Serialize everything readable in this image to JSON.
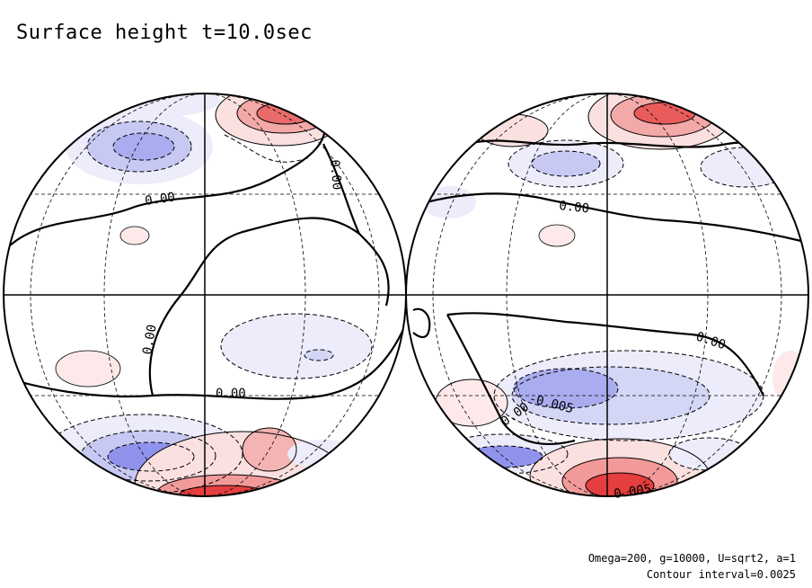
{
  "chart_data": {
    "type": "contour",
    "title": "Surface height t=10.0sec",
    "parameters": "Omega=200, g=10000, U=sqrt2, a=1",
    "contour_interval_label": "Contour interval=0.0025",
    "contour_interval": 0.0025,
    "projection": "orthographic, two hemispheres",
    "hemispheres": [
      {
        "name": "left",
        "contour_labels": [
          "0.00",
          "0.00",
          "0.00",
          "0.00"
        ],
        "features": [
          {
            "sign": "negative",
            "location": "upper-left",
            "levels": 3
          },
          {
            "sign": "positive",
            "location": "top-center",
            "levels": 6
          },
          {
            "sign": "positive",
            "location": "upper-left small",
            "levels": 1
          },
          {
            "sign": "negative",
            "location": "center-right",
            "levels": 2
          },
          {
            "sign": "positive",
            "location": "lower-left small",
            "levels": 1
          },
          {
            "sign": "negative",
            "location": "bottom-left",
            "levels": 5
          },
          {
            "sign": "positive",
            "location": "bottom-center",
            "levels": 7
          }
        ]
      },
      {
        "name": "right",
        "contour_labels": [
          "0.00",
          "0.00",
          "-0.005",
          "0.00",
          "0.005"
        ],
        "features": [
          {
            "sign": "positive",
            "location": "top-center",
            "levels": 6
          },
          {
            "sign": "negative",
            "location": "upper-center",
            "levels": 2
          },
          {
            "sign": "positive",
            "location": "upper small",
            "levels": 1
          },
          {
            "sign": "negative",
            "location": "center-lower",
            "levels": 3
          },
          {
            "sign": "positive",
            "location": "lower-left",
            "levels": 2
          },
          {
            "sign": "negative",
            "location": "bottom-left",
            "levels": 4
          },
          {
            "sign": "positive",
            "location": "bottom-center",
            "levels": 7
          }
        ]
      }
    ]
  }
}
